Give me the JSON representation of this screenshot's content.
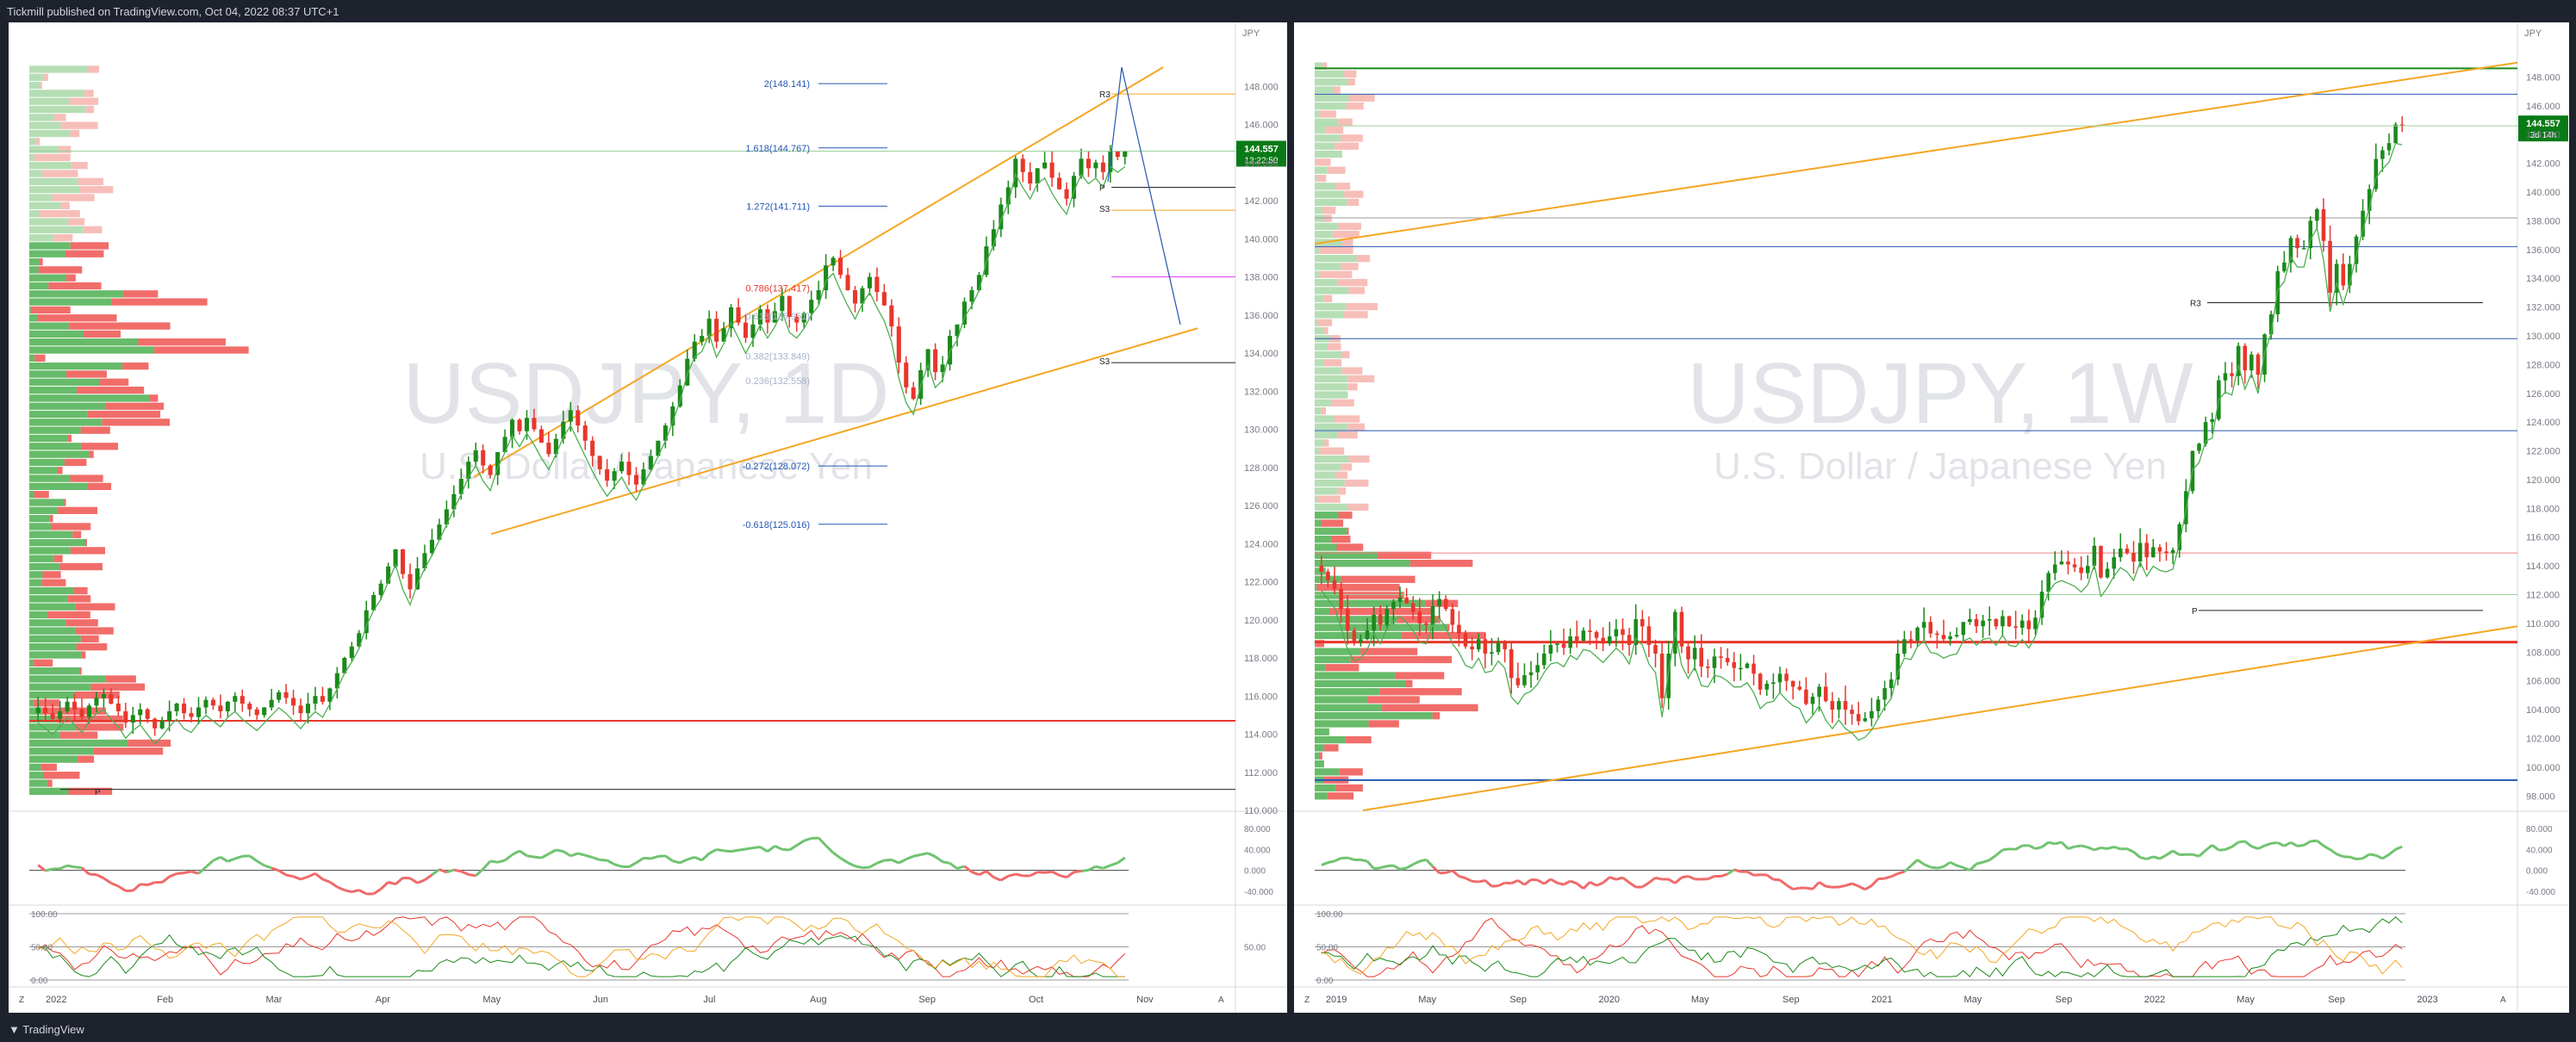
{
  "header": {
    "publisher_line": "Tickmill published on TradingView.com, Oct 04, 2022 08:37 UTC+1"
  },
  "footer": {
    "logo_text": "TradingView"
  },
  "colors": {
    "up": "#1b8a1b",
    "down": "#e8372c",
    "orange": "#f5a623",
    "blue": "#2456b3",
    "bg": "#ffffff",
    "axis_text": "#787b86"
  },
  "left_chart": {
    "watermark_symbol": "USDJPY, 1D",
    "watermark_desc": "U.S. Dollar / Japanese Yen",
    "currency": "JPY",
    "price_badge": "144.557",
    "countdown": "13:22:50",
    "y_ticks": [
      "148.000",
      "146.000",
      "144.000",
      "142.000",
      "140.000",
      "138.000",
      "136.000",
      "134.000",
      "132.000",
      "130.000",
      "128.000",
      "126.000",
      "124.000",
      "122.000",
      "120.000",
      "118.000",
      "116.000",
      "114.000",
      "112.000",
      "110.000"
    ],
    "x_ticks": [
      "2022",
      "Feb",
      "Mar",
      "Apr",
      "May",
      "Jun",
      "Jul",
      "Aug",
      "Sep",
      "Oct",
      "Nov"
    ],
    "fib_labels": [
      "2(148.141)",
      "1.618(144.767)",
      "1.272(141.711)",
      "0.786(137.417)",
      "0.618(135.951)",
      "0.382(133.849)",
      "0.236(132.558)",
      "-0.272(128.072)",
      "-0.618(125.016)"
    ],
    "pivot_labels": [
      "R3",
      "P",
      "S3",
      "S3",
      "P"
    ],
    "osc1_ticks": [
      "80.000",
      "40.000",
      "0.000",
      "-40.000"
    ],
    "osc2_ticks": [
      "100.00",
      "50.00",
      "0.00",
      "50.00"
    ],
    "axis_buttons": [
      "Z",
      "A"
    ]
  },
  "right_chart": {
    "watermark_symbol": "USDJPY, 1W",
    "watermark_desc": "U.S. Dollar / Japanese Yen",
    "currency": "JPY",
    "price_badge": "144.557",
    "countdown": "3d 14h",
    "y_ticks": [
      "148.000",
      "146.000",
      "144.000",
      "142.000",
      "140.000",
      "138.000",
      "136.000",
      "134.000",
      "132.000",
      "130.000",
      "128.000",
      "126.000",
      "124.000",
      "122.000",
      "120.000",
      "118.000",
      "116.000",
      "114.000",
      "112.000",
      "110.000",
      "108.000",
      "106.000",
      "104.000",
      "102.000",
      "100.000",
      "98.000"
    ],
    "x_ticks": [
      "2019",
      "May",
      "Sep",
      "2020",
      "May",
      "Sep",
      "2021",
      "May",
      "Sep",
      "2022",
      "May",
      "Sep",
      "2023"
    ],
    "pivot_labels": [
      "R3",
      "P"
    ],
    "osc1_ticks": [
      "80.000",
      "40.000",
      "0.000",
      "-40.000"
    ],
    "osc2_ticks": [
      "100.00",
      "50.00",
      "0.00"
    ],
    "axis_buttons": [
      "Z",
      "A"
    ]
  },
  "chart_data": [
    {
      "type": "candlestick",
      "title": "USDJPY, 1D",
      "ylim": [
        110,
        150
      ],
      "x_range": [
        "2022-01",
        "2022-11"
      ],
      "closes": [
        115.4,
        115.1,
        114.8,
        115.2,
        115.7,
        115.3,
        114.9,
        115.5,
        115.9,
        116.1,
        115.6,
        115.2,
        114.6,
        115.0,
        115.3,
        114.8,
        114.3,
        114.7,
        115.2,
        115.6,
        115.1,
        114.9,
        115.4,
        115.8,
        115.5,
        115.2,
        115.7,
        116.0,
        115.6,
        115.3,
        115.0,
        115.4,
        115.8,
        116.2,
        115.9,
        115.5,
        115.1,
        115.6,
        116.0,
        115.7,
        116.4,
        117.2,
        118.0,
        118.6,
        119.3,
        120.5,
        121.3,
        121.9,
        122.8,
        123.7,
        122.4,
        121.6,
        122.7,
        123.5,
        124.2,
        125.0,
        125.8,
        126.6,
        127.4,
        128.3,
        128.9,
        128.1,
        127.6,
        128.8,
        129.6,
        130.5,
        129.9,
        130.6,
        130.0,
        129.3,
        128.7,
        129.5,
        130.4,
        131.0,
        130.2,
        129.4,
        128.6,
        127.9,
        127.3,
        127.8,
        128.3,
        127.6,
        127.1,
        127.9,
        128.6,
        129.4,
        130.2,
        131.2,
        132.3,
        133.7,
        134.6,
        134.9,
        135.8,
        134.6,
        135.3,
        136.4,
        135.6,
        134.8,
        135.5,
        136.3,
        135.6,
        136.2,
        137.0,
        135.9,
        135.6,
        136.1,
        136.8,
        137.3,
        138.6,
        139.0,
        138.1,
        137.3,
        136.6,
        137.4,
        138.0,
        137.2,
        136.5,
        135.4,
        133.5,
        132.2,
        131.6,
        133.1,
        134.2,
        133.0,
        133.4,
        134.9,
        135.5,
        136.7,
        137.3,
        138.1,
        139.6,
        140.5,
        141.8,
        142.7,
        144.2,
        143.5,
        142.9,
        143.7,
        144.0,
        143.2,
        142.6,
        142.1,
        143.3,
        144.2,
        143.7,
        144.0,
        143.5,
        144.6,
        144.3,
        144.6
      ]
    },
    {
      "type": "candlestick",
      "title": "USDJPY, 1W",
      "ylim": [
        97,
        150
      ],
      "x_range": [
        "2018-11",
        "2023-02"
      ],
      "closes": [
        113.6,
        113.0,
        112.4,
        111.0,
        109.5,
        108.7,
        108.9,
        109.5,
        110.6,
        109.9,
        111.0,
        111.5,
        111.8,
        111.4,
        110.8,
        110.0,
        109.9,
        111.2,
        111.7,
        111.0,
        109.9,
        109.3,
        108.4,
        108.2,
        108.9,
        107.9,
        108.0,
        108.7,
        108.2,
        106.2,
        105.7,
        106.4,
        106.6,
        107.1,
        107.9,
        108.5,
        108.6,
        108.3,
        109.1,
        108.8,
        109.5,
        109.4,
        109.0,
        108.6,
        109.1,
        109.6,
        109.2,
        108.5,
        110.3,
        109.8,
        108.5,
        107.9,
        104.8,
        107.9,
        110.8,
        108.4,
        107.5,
        108.3,
        107.0,
        106.9,
        107.7,
        107.6,
        107.3,
        106.9,
        106.9,
        107.2,
        106.5,
        105.4,
        105.8,
        105.9,
        106.5,
        106.0,
        105.6,
        105.4,
        104.4,
        104.9,
        105.6,
        104.6,
        104.0,
        104.6,
        104.0,
        103.7,
        103.2,
        103.4,
        103.9,
        104.7,
        105.5,
        106.1,
        107.9,
        108.9,
        108.8,
        109.7,
        110.1,
        109.3,
        109.2,
        108.9,
        109.1,
        109.2,
        110.1,
        110.3,
        109.8,
        110.2,
        110.3,
        109.8,
        110.5,
        109.8,
        109.7,
        110.2,
        109.6,
        110.4,
        112.2,
        113.5,
        114.1,
        114.3,
        114.1,
        113.9,
        113.5,
        114.0,
        115.4,
        113.2,
        113.8,
        114.6,
        115.2,
        114.9,
        114.3,
        115.6,
        114.6,
        115.3,
        115.0,
        114.9,
        115.1,
        116.9,
        119.2,
        122.0,
        122.5,
        124.0,
        124.2,
        126.9,
        127.4,
        127.2,
        129.3,
        127.6,
        128.7,
        127.3,
        130.1,
        131.5,
        134.5,
        135.1,
        136.8,
        136.1,
        136.1,
        138.0,
        138.8,
        136.6,
        133.0,
        135.0,
        133.5,
        135.0,
        136.9,
        138.7,
        140.2,
        142.3,
        142.9,
        143.4,
        144.7,
        144.6
      ]
    }
  ]
}
